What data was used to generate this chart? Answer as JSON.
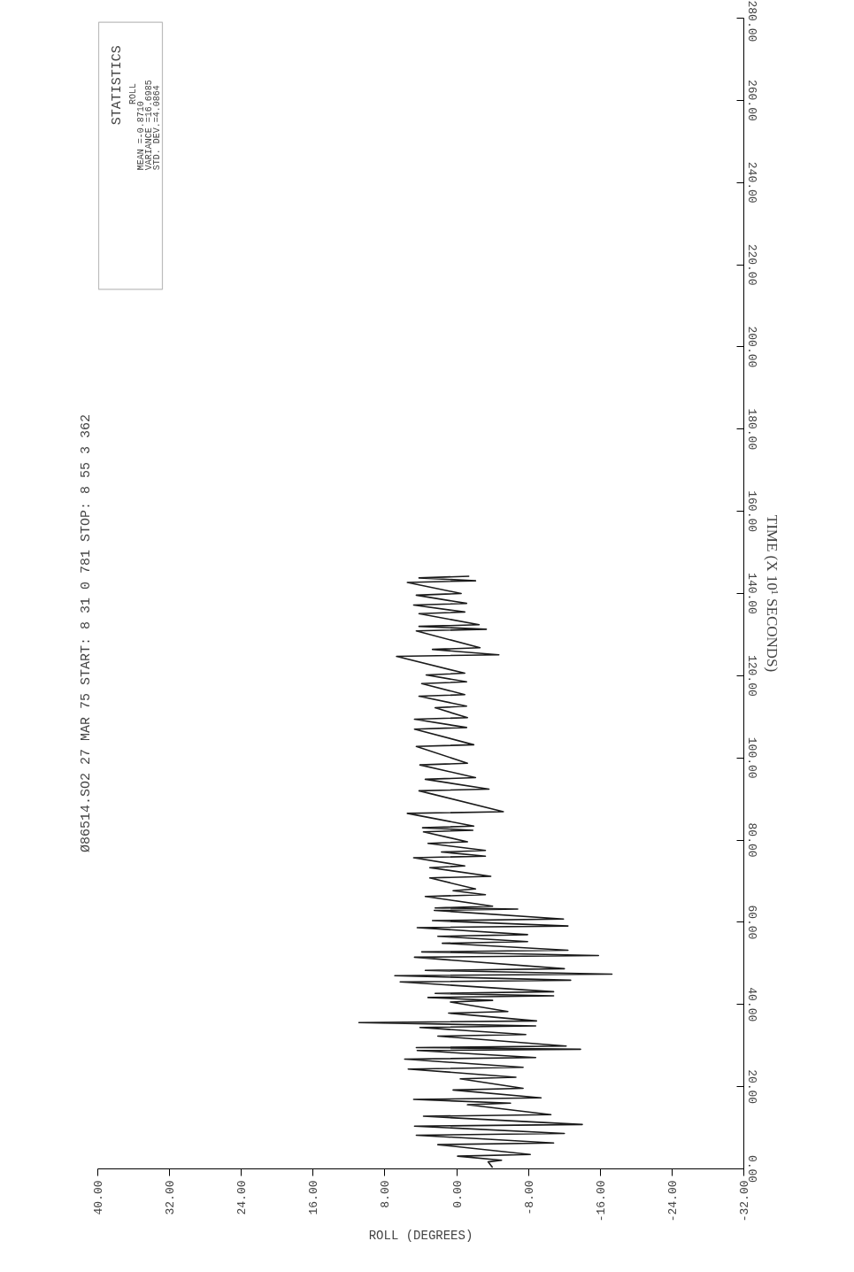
{
  "chart_data": {
    "type": "line",
    "title": "Ø86514.SO2 27 MAR 75  START:  8  31  0  781  STOP:  8  55  3  362",
    "ylabel": "TIME (X 10¹ SECONDS)",
    "xlabel": "ROLL (DEGREES)",
    "annotations": [
      "STATISTICS",
      "ROLL",
      "MEAN      =-0.8710",
      "VARIANCE =16.6985",
      "STD. DEV.=4.0864"
    ],
    "values": [
      0.3,
      1.7,
      2.1,
      3.1,
      3.5,
      5.9,
      6.3,
      8.2,
      8.6,
      10.4,
      10.8,
      12.8,
      13.2,
      15.6,
      16.0,
      16.9,
      17.3,
      19.2,
      19.6,
      21.9,
      22.3,
      24.3,
      24.7,
      26.7,
      27.1,
      28.8,
      29.1,
      29.5,
      29.9,
      32.3,
      32.7,
      34.4,
      34.8,
      35.6,
      36.0,
      37.9,
      38.3,
      40.6,
      41.0,
      41.7,
      42.1,
      42.7,
      43.1,
      45.5,
      45.9,
      47.0,
      47.4,
      48.3,
      48.7,
      51.5,
      51.9,
      52.8,
      53.2,
      54.9,
      55.3,
      56.6,
      57.0,
      58.7,
      59.1,
      60.4,
      60.8,
      62.9,
      63.2,
      63.5,
      63.9,
      66.3,
      66.7,
      67.7,
      68.1,
      70.8,
      71.2,
      73.3,
      73.7,
      75.7,
      76.1,
      77.1,
      77.5,
      79.2,
      79.6,
      82.0,
      82.4,
      83.0,
      83.4,
      86.5,
      86.9,
      92.0,
      92.4,
      94.8,
      95.2,
      98.3,
      98.7,
      102.8,
      103.2,
      107.0,
      107.4,
      109.4,
      109.8,
      112.2,
      112.6,
      115.0,
      115.4,
      118.1,
      118.5,
      120.2,
      120.6,
      124.7,
      125.1,
      126.4,
      126.8,
      130.9,
      131.3,
      132.0,
      132.4,
      135.1,
      135.5,
      137.2,
      137.6,
      139.6,
      140.0,
      142.7,
      143.1,
      143.8,
      144.2
    ],
    "x": [
      -4.0,
      -3.5,
      -5.0,
      -0.1,
      -8.2,
      2.1,
      -10.8,
      4.5,
      -12.0,
      4.7,
      -14.0,
      3.7,
      -10.5,
      -1.2,
      -6.0,
      4.8,
      -9.4,
      0.4,
      -7.4,
      -0.4,
      -6.6,
      5.4,
      -7.4,
      5.8,
      -8.8,
      4.4,
      -13.8,
      4.5,
      -12.2,
      2.1,
      -7.7,
      4.1,
      -8.8,
      10.9,
      -8.9,
      0.9,
      -5.7,
      0.7,
      -4.0,
      3.2,
      -10.8,
      2.4,
      -10.8,
      6.3,
      -12.7,
      6.9,
      -17.3,
      3.5,
      -12.0,
      4.7,
      -15.8,
      3.9,
      -12.4,
      1.6,
      -7.9,
      2.1,
      -7.9,
      4.4,
      -12.4,
      2.7,
      -11.9,
      2.5,
      -6.8,
      2.4,
      -4.0,
      3.5,
      -3.2,
      0.4,
      -2.1,
      3.0,
      -3.8,
      3.0,
      -0.9,
      4.8,
      -3.2,
      1.7,
      -3.2,
      3.2,
      -1.2,
      3.7,
      -1.8,
      3.8,
      -1.9,
      5.5,
      -5.2,
      4.2,
      -3.6,
      3.5,
      -2.1,
      4.1,
      -1.2,
      4.5,
      -1.9,
      4.7,
      -1.1,
      4.7,
      -1.2,
      2.4,
      -1.1,
      4.2,
      -0.9,
      3.9,
      -1.1,
      3.4,
      -0.9,
      6.7,
      -4.7,
      2.7,
      -2.6,
      4.5,
      -3.3,
      4.2,
      -2.5,
      4.2,
      -0.9,
      4.8,
      -1.1,
      4.5,
      -0.5,
      5.5,
      -2.1,
      4.2,
      -1.4
    ],
    "color": "#1a1a1a",
    "line_style": "solid",
    "marker": "none",
    "grid": false,
    "ylim": [
      0,
      280
    ],
    "yticks": [
      {
        "value": 0,
        "label": "0.00"
      },
      {
        "value": 20,
        "label": "20.00"
      },
      {
        "value": 40,
        "label": "40.00"
      },
      {
        "value": 60,
        "label": "60.00"
      },
      {
        "value": 80,
        "label": "80.00"
      },
      {
        "value": 100,
        "label": "100.00"
      },
      {
        "value": 120,
        "label": "120.00"
      },
      {
        "value": 140,
        "label": "140.00"
      },
      {
        "value": 160,
        "label": "160.00"
      },
      {
        "value": 180,
        "label": "180.00"
      },
      {
        "value": 200,
        "label": "200.00"
      },
      {
        "value": 220,
        "label": "220.00"
      },
      {
        "value": 240,
        "label": "240.00"
      },
      {
        "value": 260,
        "label": "260.00"
      },
      {
        "value": 280,
        "label": "280.00"
      }
    ],
    "xlim": [
      40,
      -32
    ],
    "xticks": [
      {
        "value": -32,
        "label": "-32.00"
      },
      {
        "value": -24,
        "label": "-24.00"
      },
      {
        "value": -16,
        "label": "-16.00"
      },
      {
        "value": -8,
        "label": "-8.00"
      },
      {
        "value": 0,
        "label": "0.00"
      },
      {
        "value": 8,
        "label": "8.00"
      },
      {
        "value": 16,
        "label": "16.00"
      },
      {
        "value": 24,
        "label": "24.00"
      },
      {
        "value": 32,
        "label": "32.00"
      },
      {
        "value": 40,
        "label": "40.00"
      }
    ]
  }
}
